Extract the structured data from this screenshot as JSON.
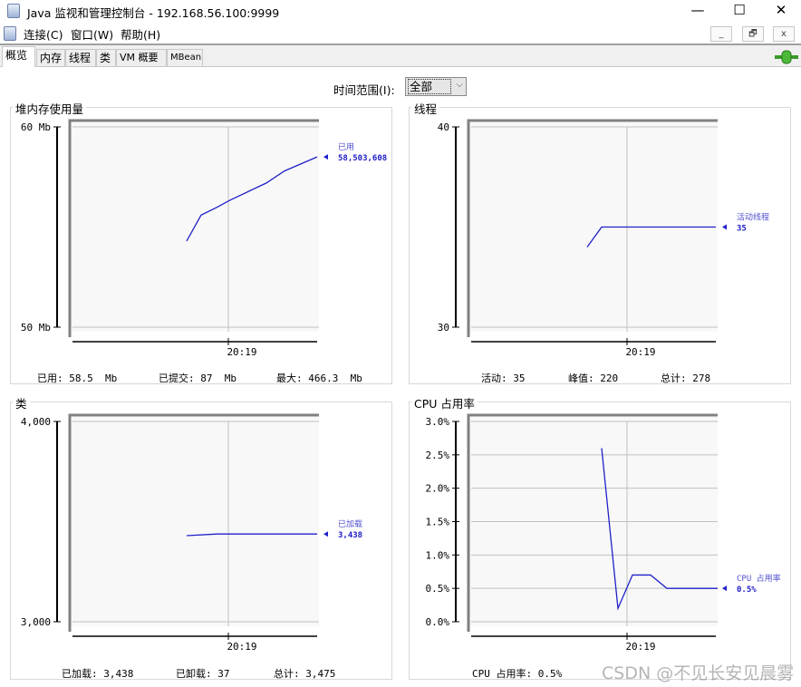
{
  "window": {
    "title": "Java 监视和管理控制台 - 192.168.56.100:9999",
    "minimize": "—",
    "maximize": "☐",
    "close": "✕"
  },
  "menubar": {
    "items": [
      "连接(C)",
      "窗口(W)",
      "帮助(H)"
    ],
    "mdi": [
      "_",
      "🗗",
      "x"
    ]
  },
  "tabs": [
    "概览",
    "内存",
    "线程",
    "类",
    "VM 概要",
    "MBean"
  ],
  "active_tab": "概览",
  "connection_icon": "connected-plug-icon",
  "time_range": {
    "label": "时间范围(I):",
    "value": "全部"
  },
  "colors": {
    "series": "#2020c8",
    "grid": "#c0c0c0",
    "plot_bg": "#f8f8f8"
  },
  "watermark": "CSDN @不见长安见晨雾",
  "chart_data": [
    {
      "type": "line",
      "title": "堆内存使用量",
      "ylim": [
        50,
        60
      ],
      "yticks": [
        {
          "v": 50,
          "label": "50 Mb"
        },
        {
          "v": 60,
          "label": "60 Mb"
        }
      ],
      "xtick": "20:19",
      "xrange": [
        "20:17:33",
        "20:19:50"
      ],
      "series": [
        {
          "name": "已用",
          "value_label": "58,503,608",
          "points": [
            [
              "20:18:37",
              54.3
            ],
            [
              "20:18:45",
              55.6
            ],
            [
              "20:18:54",
              56.0
            ],
            [
              "20:19:00",
              56.3
            ],
            [
              "20:19:21",
              57.2
            ],
            [
              "20:19:31",
              57.8
            ],
            [
              "20:19:49",
              58.5
            ]
          ]
        }
      ],
      "footer": [
        {
          "label": "已用:",
          "value": "58.5  Mb"
        },
        {
          "label": "已提交:",
          "value": "87  Mb"
        },
        {
          "label": "最大:",
          "value": "466.3  Mb"
        }
      ]
    },
    {
      "type": "line",
      "title": "线程",
      "ylim": [
        30,
        40
      ],
      "yticks": [
        {
          "v": 30,
          "label": "30"
        },
        {
          "v": 40,
          "label": "40"
        }
      ],
      "xtick": "20:19",
      "xrange": [
        "20:17:33",
        "20:19:50"
      ],
      "series": [
        {
          "name": "活动线程",
          "value_label": "35",
          "points": [
            [
              "20:18:38",
              34
            ],
            [
              "20:18:46",
              35
            ],
            [
              "20:19:49",
              35
            ]
          ]
        }
      ],
      "footer": [
        {
          "label": "活动:",
          "value": "35"
        },
        {
          "label": "峰值:",
          "value": "220"
        },
        {
          "label": "总计:",
          "value": "278"
        }
      ]
    },
    {
      "type": "line",
      "title": "类",
      "ylim": [
        3000,
        4000
      ],
      "yticks": [
        {
          "v": 3000,
          "label": "3,000"
        },
        {
          "v": 4000,
          "label": "4,000"
        }
      ],
      "xtick": "20:19",
      "xrange": [
        "20:17:33",
        "20:19:50"
      ],
      "series": [
        {
          "name": "已加载",
          "value_label": "3,438",
          "points": [
            [
              "20:18:37",
              3430
            ],
            [
              "20:18:54",
              3438
            ],
            [
              "20:19:49",
              3438
            ]
          ]
        }
      ],
      "footer": [
        {
          "label": "已加载:",
          "value": "3,438"
        },
        {
          "label": "已卸载:",
          "value": "37"
        },
        {
          "label": "总计:",
          "value": "3,475"
        }
      ]
    },
    {
      "type": "line",
      "title": "CPU 占用率",
      "ylim": [
        0,
        3
      ],
      "yticks": [
        {
          "v": 0,
          "label": "0.0%"
        },
        {
          "v": 0.5,
          "label": "0.5%"
        },
        {
          "v": 1,
          "label": "1.0%"
        },
        {
          "v": 1.5,
          "label": "1.5%"
        },
        {
          "v": 2,
          "label": "2.0%"
        },
        {
          "v": 2.5,
          "label": "2.5%"
        },
        {
          "v": 3,
          "label": "3.0%"
        }
      ],
      "xtick": "20:19",
      "xrange": [
        "20:17:33",
        "20:19:50"
      ],
      "series": [
        {
          "name": "CPU 占用率",
          "value_label": "0.5%",
          "points": [
            [
              "20:18:46",
              2.6
            ],
            [
              "20:18:55",
              0.2
            ],
            [
              "20:19:03",
              0.7
            ],
            [
              "20:19:13",
              0.7
            ],
            [
              "20:19:22",
              0.5
            ],
            [
              "20:19:50",
              0.5
            ]
          ]
        }
      ],
      "footer": [
        {
          "label": "CPU 占用率:",
          "value": "0.5%"
        }
      ]
    }
  ]
}
